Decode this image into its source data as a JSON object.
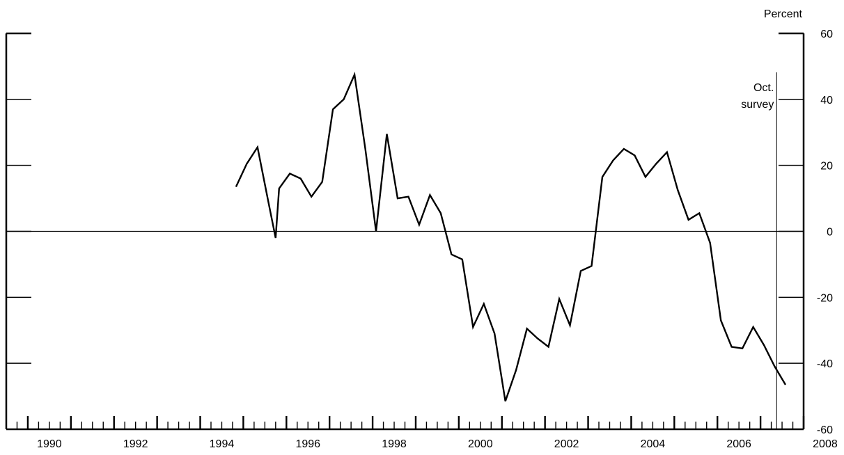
{
  "chart_data": {
    "type": "line",
    "title": "",
    "xlabel": "",
    "ylabel": "Percent",
    "ylim": [
      -60,
      60
    ],
    "yticks": [
      60,
      40,
      20,
      0,
      -20,
      -40,
      -60
    ],
    "xlim": [
      1989.5,
      2008.0
    ],
    "xticks": [
      1990,
      1992,
      1994,
      1996,
      1998,
      2000,
      2002,
      2004,
      2006,
      2008
    ],
    "grid": false,
    "zero_line": true,
    "annotation": {
      "lines": [
        "Oct.",
        "survey"
      ],
      "x": 2007.375
    },
    "series": [
      {
        "name": "",
        "color": "#000000",
        "x": [
          1994.83,
          1995.08,
          1995.33,
          1995.58,
          1995.75,
          1995.83,
          1996.08,
          1996.33,
          1996.58,
          1996.83,
          1997.08,
          1997.33,
          1997.58,
          1997.83,
          1998.08,
          1998.33,
          1998.58,
          1998.83,
          1999.08,
          1999.33,
          1999.58,
          1999.83,
          2000.08,
          2000.33,
          2000.58,
          2000.83,
          2001.08,
          2001.33,
          2001.58,
          2001.83,
          2002.08,
          2002.33,
          2002.58,
          2002.83,
          2003.08,
          2003.33,
          2003.58,
          2003.83,
          2004.08,
          2004.33,
          2004.58,
          2004.83,
          2005.08,
          2005.33,
          2005.58,
          2005.83,
          2006.08,
          2006.33,
          2006.58,
          2006.83,
          2007.08,
          2007.33,
          2007.58
        ],
        "y": [
          13.5,
          20.5,
          25.5,
          9,
          -2,
          13,
          17.5,
          16,
          10.5,
          15,
          37,
          40,
          47.5,
          25,
          0,
          29.5,
          10,
          10.5,
          2,
          11,
          5.5,
          -7,
          -8.5,
          -29,
          -22,
          -31,
          -51.5,
          -42,
          -29.5,
          -32.5,
          -35,
          -20.5,
          -28.5,
          -12,
          -10.5,
          16.5,
          21.5,
          25,
          23,
          16.5,
          20.5,
          24,
          12.5,
          3.5,
          5.5,
          -3.5,
          -27,
          -35,
          -35.5,
          -29,
          -34.5,
          -41,
          -46.5
        ]
      }
    ]
  }
}
